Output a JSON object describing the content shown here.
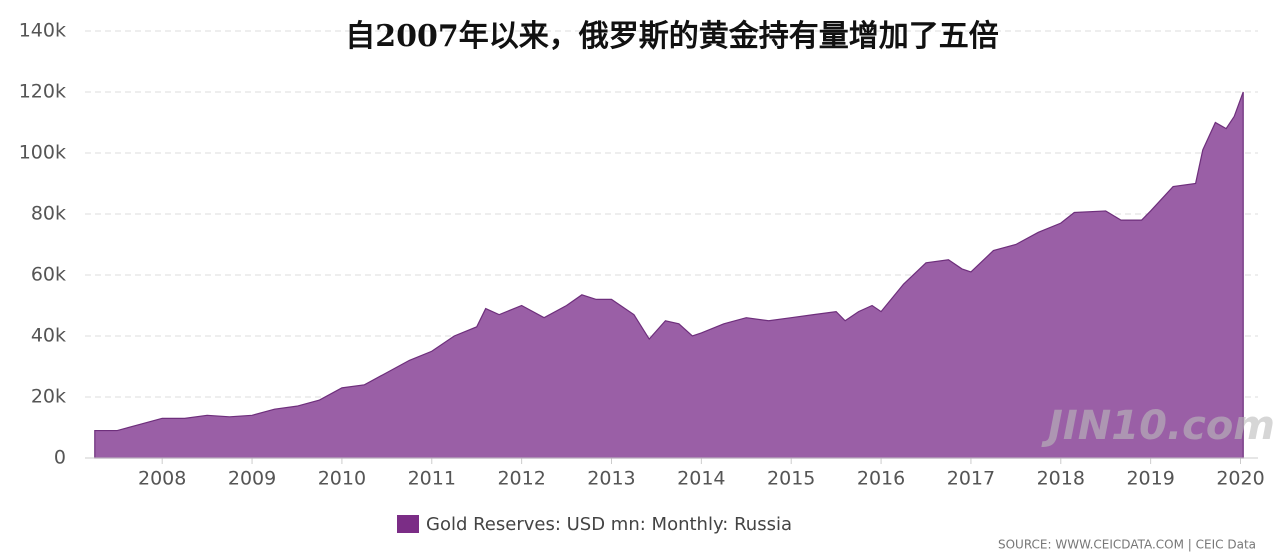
{
  "chart_data": {
    "type": "area",
    "title": "自2007年以来，俄罗斯的黄金持有量增加了五倍",
    "x": [
      2007.25,
      2007.5,
      2007.75,
      2008.0,
      2008.25,
      2008.5,
      2008.75,
      2009.0,
      2009.25,
      2009.5,
      2009.75,
      2010.0,
      2010.25,
      2010.5,
      2010.75,
      2011.0,
      2011.25,
      2011.5,
      2011.6,
      2011.75,
      2012.0,
      2012.25,
      2012.5,
      2012.67,
      2012.83,
      2013.0,
      2013.25,
      2013.42,
      2013.6,
      2013.75,
      2013.9,
      2014.0,
      2014.25,
      2014.5,
      2014.75,
      2015.0,
      2015.25,
      2015.5,
      2015.6,
      2015.75,
      2015.9,
      2016.0,
      2016.25,
      2016.5,
      2016.75,
      2016.9,
      2017.0,
      2017.25,
      2017.5,
      2017.75,
      2018.0,
      2018.15,
      2018.5,
      2018.67,
      2018.9,
      2019.0,
      2019.25,
      2019.5,
      2019.58,
      2019.72,
      2019.84,
      2019.93,
      2020.03
    ],
    "series": [
      {
        "name": "Gold Reserves: USD mn: Monthly: Russia",
        "color": "#9a5fa6",
        "line_color": "#6e2f7c",
        "legend_color": "#7b2d86",
        "values": [
          9000,
          9000,
          11000,
          13000,
          13000,
          14000,
          13500,
          14000,
          16000,
          17000,
          19000,
          23000,
          24000,
          28000,
          32000,
          35000,
          40000,
          43000,
          49000,
          47000,
          50000,
          46000,
          50000,
          53500,
          52000,
          52000,
          47000,
          39000,
          45000,
          44000,
          40000,
          41000,
          44000,
          46000,
          45000,
          46000,
          47000,
          48000,
          45000,
          48000,
          50000,
          48000,
          57000,
          64000,
          65000,
          62000,
          61000,
          68000,
          70000,
          74000,
          77000,
          80500,
          81000,
          78000,
          78000,
          81000,
          89000,
          90000,
          101000,
          110000,
          108000,
          112000,
          120000
        ]
      }
    ],
    "xlim": [
      2007.23,
      2020.05
    ],
    "xticks": [
      2008,
      2009,
      2010,
      2011,
      2012,
      2013,
      2014,
      2015,
      2016,
      2017,
      2018,
      2019,
      2020
    ],
    "ylim": [
      0,
      140000
    ],
    "yticks": [
      0,
      {
        "value": 20000,
        "label": "20k"
      },
      {
        "value": 40000,
        "label": "40k"
      },
      {
        "value": 60000,
        "label": "60k"
      },
      {
        "value": 80000,
        "label": "80k"
      },
      {
        "value": 100000,
        "label": "100k"
      },
      {
        "value": 120000,
        "label": "120k"
      },
      {
        "value": 140000,
        "label": "140k"
      }
    ],
    "grid": true,
    "source": "SOURCE: WWW.CEICDATA.COM | CEIC Data",
    "watermark": "JIN10.com"
  }
}
